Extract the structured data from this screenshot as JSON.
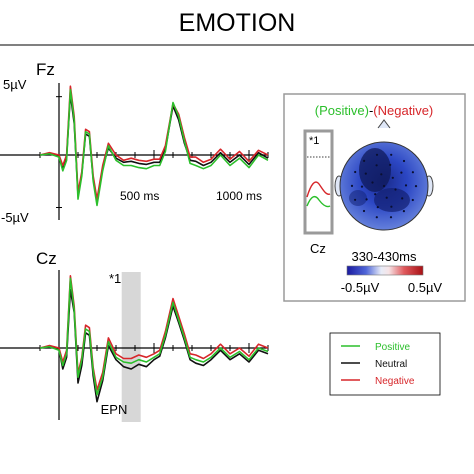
{
  "title": "EMOTION",
  "colors": {
    "positive": "#2bbf2b",
    "neutral": "#111111",
    "negative": "#d7262a",
    "epn_band": "#d7d7d7",
    "panel_border": "#9a9a9a"
  },
  "chart_data": [
    {
      "type": "line",
      "electrode": "Fz",
      "xlabel": "",
      "ylabel": "",
      "x_unit": "ms",
      "xlim": [
        -100,
        1100
      ],
      "ylim": [
        -6,
        6
      ],
      "y_ticks": [
        {
          "value": 5,
          "label": "5µV"
        },
        {
          "value": -5,
          "label": "-5µV"
        }
      ],
      "x_ticks": [
        {
          "value": 500,
          "label": "500 ms"
        },
        {
          "value": 1000,
          "label": "1000 ms"
        }
      ],
      "x": [
        -100,
        -50,
        0,
        20,
        40,
        60,
        80,
        100,
        120,
        140,
        160,
        180,
        200,
        230,
        260,
        300,
        340,
        380,
        420,
        460,
        500,
        530,
        560,
        600,
        630,
        660,
        690,
        720,
        760,
        800,
        850,
        900,
        950,
        1000,
        1050,
        1100
      ],
      "series": [
        {
          "name": "Positive",
          "values": [
            0.0,
            0.1,
            -0.2,
            -1.5,
            -0.5,
            5.6,
            3.0,
            -4.2,
            -2.0,
            2.0,
            1.8,
            -2.5,
            -4.8,
            -1.5,
            0.8,
            -0.5,
            -1.0,
            -1.0,
            -1.2,
            -1.3,
            -1.0,
            -1.0,
            0.3,
            4.5,
            3.3,
            1.2,
            -0.8,
            -1.0,
            -1.3,
            -1.0,
            0.0,
            -1.0,
            -0.3,
            -1.2,
            0.0,
            -0.5
          ]
        },
        {
          "name": "Neutral",
          "values": [
            0.0,
            0.1,
            -0.1,
            -1.2,
            -0.2,
            5.2,
            2.7,
            -3.8,
            -1.8,
            1.8,
            1.6,
            -2.3,
            -4.4,
            -1.2,
            0.6,
            -0.3,
            -0.7,
            -0.6,
            -0.8,
            -0.9,
            -0.7,
            -0.7,
            0.5,
            4.2,
            3.0,
            1.0,
            -0.5,
            -0.6,
            -1.0,
            -0.7,
            0.2,
            -0.7,
            0.0,
            -0.9,
            0.2,
            -0.3
          ]
        },
        {
          "name": "Negative",
          "values": [
            0.0,
            0.2,
            0.0,
            -1.0,
            0.0,
            5.9,
            3.3,
            -3.6,
            -1.6,
            2.2,
            2.0,
            -2.0,
            -4.2,
            -1.0,
            1.0,
            0.0,
            -0.5,
            -0.3,
            -0.5,
            -0.6,
            -0.4,
            -0.4,
            0.8,
            4.4,
            3.5,
            1.5,
            -0.2,
            -0.2,
            -0.7,
            -0.4,
            0.5,
            -0.4,
            0.3,
            -0.6,
            0.4,
            0.0
          ]
        }
      ]
    },
    {
      "type": "line",
      "electrode": "Cz",
      "xlabel": "",
      "ylabel": "",
      "x_unit": "ms",
      "xlim": [
        -100,
        1100
      ],
      "ylim": [
        -6,
        6
      ],
      "shaded_window": {
        "from": 330,
        "to": 430,
        "label": "EPN",
        "annotation": "*1"
      },
      "x": [
        -100,
        -50,
        0,
        20,
        40,
        60,
        80,
        100,
        120,
        140,
        160,
        180,
        200,
        230,
        260,
        300,
        340,
        380,
        420,
        460,
        500,
        530,
        560,
        600,
        630,
        660,
        690,
        720,
        760,
        800,
        850,
        900,
        950,
        1000,
        1050,
        1100
      ],
      "series": [
        {
          "name": "Positive",
          "values": [
            0.0,
            0.1,
            -0.2,
            -1.5,
            -0.5,
            5.5,
            3.0,
            -2.5,
            -1.0,
            1.5,
            1.3,
            -2.0,
            -4.0,
            -2.5,
            0.5,
            -0.8,
            -1.2,
            -1.3,
            -1.0,
            -1.2,
            -0.8,
            -0.5,
            1.0,
            3.6,
            2.2,
            0.8,
            -0.8,
            -1.0,
            -1.2,
            -0.8,
            0.0,
            -0.8,
            -0.3,
            -1.0,
            0.0,
            -0.3
          ]
        },
        {
          "name": "Neutral",
          "values": [
            0.0,
            0.1,
            -0.1,
            -1.8,
            -0.8,
            4.6,
            2.8,
            -3.0,
            -1.5,
            1.2,
            1.0,
            -2.4,
            -4.6,
            -2.8,
            0.2,
            -1.0,
            -1.6,
            -1.8,
            -1.4,
            -1.6,
            -1.0,
            -0.7,
            0.8,
            3.3,
            2.0,
            0.6,
            -1.0,
            -1.3,
            -1.5,
            -1.0,
            -0.2,
            -1.0,
            -0.5,
            -1.2,
            -0.2,
            -0.5
          ]
        },
        {
          "name": "Negative",
          "values": [
            0.0,
            0.2,
            0.0,
            -1.2,
            -0.2,
            5.7,
            3.3,
            -2.2,
            -0.8,
            1.8,
            1.6,
            -1.7,
            -3.6,
            -2.1,
            0.8,
            -0.5,
            -0.9,
            -0.9,
            -0.6,
            -0.8,
            -0.5,
            -0.2,
            1.3,
            3.9,
            2.5,
            1.1,
            -0.5,
            -0.6,
            -0.9,
            -0.5,
            0.3,
            -0.5,
            0.0,
            -0.7,
            0.3,
            0.0
          ]
        }
      ]
    }
  ],
  "topography": {
    "title_positive": "(Positive)",
    "title_separator": "-",
    "title_negative": "(Negative)",
    "window_label": "330-430ms",
    "colorbar_min": "-0.5µV",
    "colorbar_max": "0.5µV",
    "inset_annotation": "*1",
    "inset_electrode": "Cz"
  },
  "legend": {
    "items": [
      {
        "label": "Positive",
        "color": "#2bbf2b"
      },
      {
        "label": "Neutral",
        "color": "#111111"
      },
      {
        "label": "Negative",
        "color": "#d7262a"
      }
    ]
  }
}
